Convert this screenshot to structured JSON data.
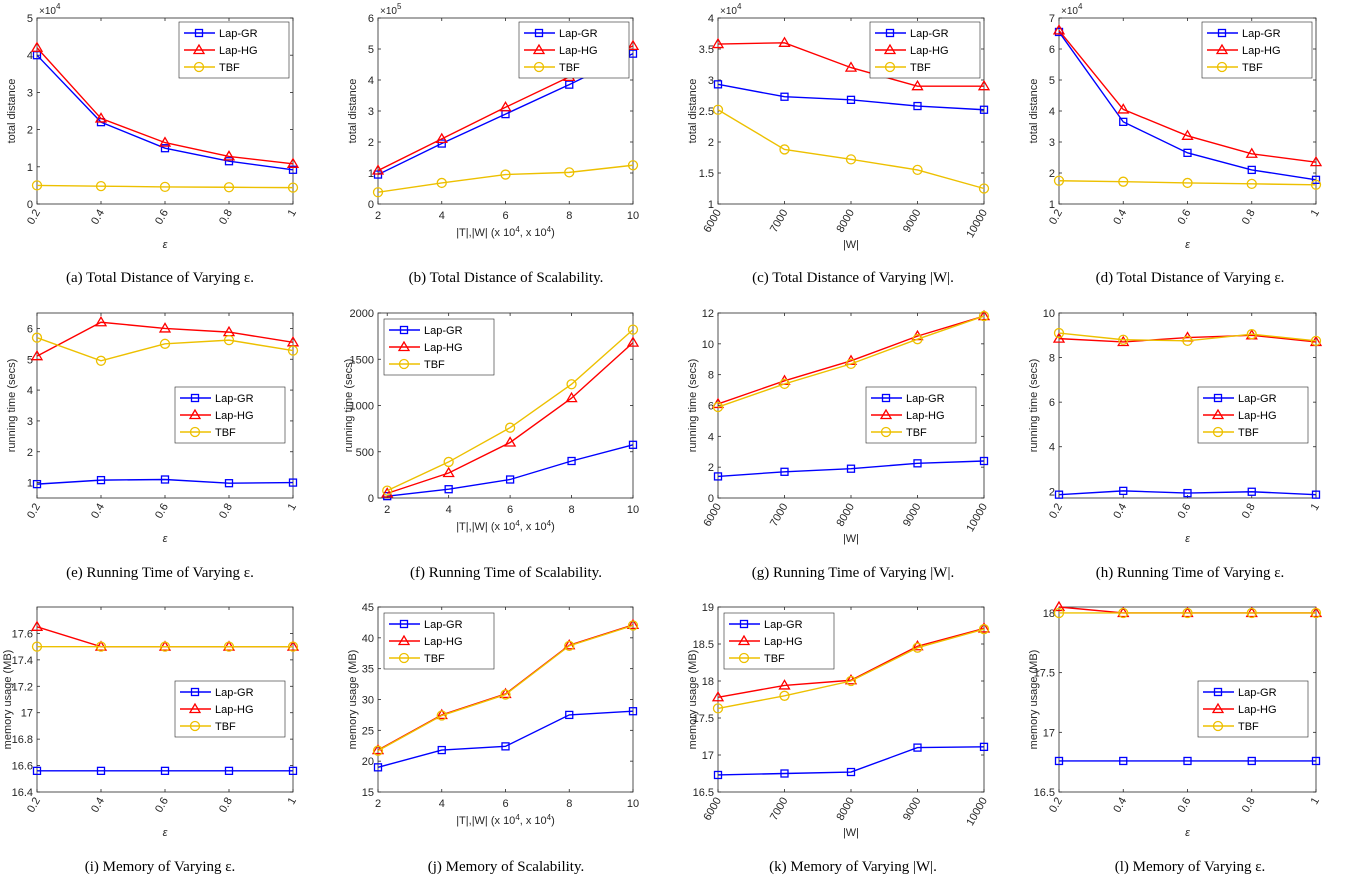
{
  "series_styles": {
    "Lap-GR": {
      "color": "#0000ff",
      "marker": "square"
    },
    "Lap-HG": {
      "color": "#ff0000",
      "marker": "triangle"
    },
    "TBF": {
      "color": "#edc000",
      "marker": "circle"
    }
  },
  "chart_data": [
    {
      "id": "a",
      "type": "line",
      "caption": "(a) Total Distance of Varying ε.",
      "ylabel": "total distance",
      "xlabel": "ε",
      "multiplier": "×10^4",
      "x": [
        0.2,
        0.4,
        0.6,
        0.8,
        1
      ],
      "xticks": [
        0.2,
        0.4,
        0.6,
        0.8,
        1
      ],
      "xtick_labels": [
        "0.2",
        "0.4",
        "0.6",
        "0.8",
        "1"
      ],
      "xlim": [
        0.2,
        1
      ],
      "rotate_x": true,
      "ylim": [
        0,
        5
      ],
      "yticks": [
        0,
        1,
        2,
        3,
        4,
        5
      ],
      "ytick_labels": [
        "0",
        "1",
        "2",
        "3",
        "4",
        "5"
      ],
      "legend": "top-right",
      "series": [
        {
          "name": "Lap-GR",
          "values": [
            4.0,
            2.2,
            1.5,
            1.15,
            0.92
          ]
        },
        {
          "name": "Lap-HG",
          "values": [
            4.2,
            2.3,
            1.65,
            1.28,
            1.08
          ]
        },
        {
          "name": "TBF",
          "values": [
            0.5,
            0.48,
            0.46,
            0.45,
            0.44
          ]
        }
      ]
    },
    {
      "id": "b",
      "type": "line",
      "caption": "(b) Total Distance of Scalability.",
      "ylabel": "total distance",
      "xlabel": "|T|,|W| (x 10^4, x 10^4)",
      "multiplier": "×10^5",
      "x": [
        2,
        4,
        6,
        8,
        10
      ],
      "xticks": [
        2,
        4,
        6,
        8,
        10
      ],
      "xtick_labels": [
        "2",
        "4",
        "6",
        "8",
        "10"
      ],
      "xlim": [
        2,
        10
      ],
      "rotate_x": false,
      "ylim": [
        0,
        6
      ],
      "yticks": [
        0,
        1,
        2,
        3,
        4,
        5,
        6
      ],
      "ytick_labels": [
        "0",
        "1",
        "2",
        "3",
        "4",
        "5",
        "6"
      ],
      "legend": "top-right",
      "series": [
        {
          "name": "Lap-GR",
          "values": [
            0.95,
            1.95,
            2.9,
            3.85,
            4.85
          ]
        },
        {
          "name": "Lap-HG",
          "values": [
            1.08,
            2.1,
            3.12,
            4.1,
            5.1
          ]
        },
        {
          "name": "TBF",
          "values": [
            0.38,
            0.68,
            0.95,
            1.02,
            1.25
          ]
        }
      ]
    },
    {
      "id": "c",
      "type": "line",
      "caption": "(c) Total Distance of Varying |W|.",
      "ylabel": "total distance",
      "xlabel": "|W|",
      "multiplier": "×10^4",
      "x": [
        6000,
        7000,
        8000,
        9000,
        10000
      ],
      "xticks": [
        6000,
        7000,
        8000,
        9000,
        10000
      ],
      "xtick_labels": [
        "6000",
        "7000",
        "8000",
        "9000",
        "10000"
      ],
      "xlim": [
        6000,
        10000
      ],
      "rotate_x": true,
      "ylim": [
        1,
        4
      ],
      "yticks": [
        1,
        1.5,
        2,
        2.5,
        3,
        3.5,
        4
      ],
      "ytick_labels": [
        "1",
        "1.5",
        "2",
        "2.5",
        "3",
        "3.5",
        "4"
      ],
      "legend": "top-right",
      "series": [
        {
          "name": "Lap-GR",
          "values": [
            2.93,
            2.73,
            2.68,
            2.58,
            2.52
          ]
        },
        {
          "name": "Lap-HG",
          "values": [
            3.58,
            3.6,
            3.2,
            2.9,
            2.9
          ]
        },
        {
          "name": "TBF",
          "values": [
            2.52,
            1.88,
            1.72,
            1.55,
            1.25
          ]
        }
      ]
    },
    {
      "id": "d",
      "type": "line",
      "caption": "(d) Total Distance of Varying ε.",
      "ylabel": "total distance",
      "xlabel": "ε",
      "multiplier": "×10^4",
      "x": [
        0.2,
        0.4,
        0.6,
        0.8,
        1
      ],
      "xticks": [
        0.2,
        0.4,
        0.6,
        0.8,
        1
      ],
      "xtick_labels": [
        "0.2",
        "0.4",
        "0.6",
        "0.8",
        "1"
      ],
      "xlim": [
        0.2,
        1
      ],
      "rotate_x": true,
      "ylim": [
        1,
        7
      ],
      "yticks": [
        1,
        2,
        3,
        4,
        5,
        6,
        7
      ],
      "ytick_labels": [
        "1",
        "2",
        "3",
        "4",
        "5",
        "6",
        "7"
      ],
      "legend": "top-right",
      "series": [
        {
          "name": "Lap-GR",
          "values": [
            6.55,
            3.65,
            2.65,
            2.1,
            1.78
          ]
        },
        {
          "name": "Lap-HG",
          "values": [
            6.6,
            4.05,
            3.2,
            2.62,
            2.35
          ]
        },
        {
          "name": "TBF",
          "values": [
            1.75,
            1.72,
            1.68,
            1.65,
            1.62
          ]
        }
      ]
    },
    {
      "id": "e",
      "type": "line",
      "caption": "(e) Running Time of Varying ε.",
      "ylabel": "running time (secs)",
      "xlabel": "ε",
      "multiplier": "",
      "x": [
        0.2,
        0.4,
        0.6,
        0.8,
        1
      ],
      "xticks": [
        0.2,
        0.4,
        0.6,
        0.8,
        1
      ],
      "xtick_labels": [
        "0.2",
        "0.4",
        "0.6",
        "0.8",
        "1"
      ],
      "xlim": [
        0.2,
        1
      ],
      "rotate_x": true,
      "ylim": [
        0.5,
        6.5
      ],
      "yticks": [
        1,
        2,
        3,
        4,
        5,
        6
      ],
      "ytick_labels": [
        "1",
        "2",
        "3",
        "4",
        "5",
        "6"
      ],
      "legend": "middle-right",
      "series": [
        {
          "name": "Lap-GR",
          "values": [
            0.95,
            1.08,
            1.1,
            0.98,
            1.0
          ]
        },
        {
          "name": "Lap-HG",
          "values": [
            5.1,
            6.2,
            6.0,
            5.88,
            5.55
          ]
        },
        {
          "name": "TBF",
          "values": [
            5.7,
            4.95,
            5.5,
            5.62,
            5.28
          ]
        }
      ]
    },
    {
      "id": "f",
      "type": "line",
      "caption": "(f) Running Time of Scalability.",
      "ylabel": "running time (secs)",
      "xlabel": "|T|,|W| (x 10^4, x 10^4)",
      "multiplier": "",
      "x": [
        2,
        4,
        6,
        8,
        10
      ],
      "xticks": [
        2,
        4,
        6,
        8,
        10
      ],
      "xtick_labels": [
        "2",
        "4",
        "6",
        "8",
        "10"
      ],
      "xlim": [
        1.7,
        10
      ],
      "rotate_x": false,
      "ylim": [
        0,
        2000
      ],
      "yticks": [
        0,
        500,
        1000,
        1500,
        2000
      ],
      "ytick_labels": [
        "0",
        "500",
        "1000",
        "1500",
        "2000"
      ],
      "legend": "top-left",
      "series": [
        {
          "name": "Lap-GR",
          "values": [
            20,
            95,
            200,
            400,
            575
          ]
        },
        {
          "name": "Lap-HG",
          "values": [
            50,
            270,
            600,
            1080,
            1680
          ]
        },
        {
          "name": "TBF",
          "values": [
            80,
            390,
            760,
            1230,
            1820
          ]
        }
      ]
    },
    {
      "id": "g",
      "type": "line",
      "caption": "(g) Running Time of Varying |W|.",
      "ylabel": "running time (secs)",
      "xlabel": "|W|",
      "multiplier": "",
      "x": [
        6000,
        7000,
        8000,
        9000,
        10000
      ],
      "xticks": [
        6000,
        7000,
        8000,
        9000,
        10000
      ],
      "xtick_labels": [
        "6000",
        "7000",
        "8000",
        "9000",
        "10000"
      ],
      "xlim": [
        6000,
        10000
      ],
      "rotate_x": true,
      "ylim": [
        0,
        12
      ],
      "yticks": [
        0,
        2,
        4,
        6,
        8,
        10,
        12
      ],
      "ytick_labels": [
        "0",
        "2",
        "4",
        "6",
        "8",
        "10",
        "12"
      ],
      "legend": "middle-right",
      "series": [
        {
          "name": "Lap-GR",
          "values": [
            1.4,
            1.7,
            1.9,
            2.25,
            2.4
          ]
        },
        {
          "name": "Lap-HG",
          "values": [
            6.1,
            7.6,
            8.9,
            10.5,
            11.8
          ]
        },
        {
          "name": "TBF",
          "values": [
            5.9,
            7.4,
            8.7,
            10.3,
            11.8
          ]
        }
      ]
    },
    {
      "id": "h",
      "type": "line",
      "caption": "(h) Running Time of Varying ε.",
      "ylabel": "running time (secs)",
      "xlabel": "ε",
      "multiplier": "",
      "x": [
        0.2,
        0.4,
        0.6,
        0.8,
        1
      ],
      "xticks": [
        0.2,
        0.4,
        0.6,
        0.8,
        1
      ],
      "xtick_labels": [
        "0.2",
        "0.4",
        "0.6",
        "0.8",
        "1"
      ],
      "xlim": [
        0.2,
        1
      ],
      "rotate_x": true,
      "ylim": [
        1.7,
        10
      ],
      "yticks": [
        2,
        4,
        6,
        8,
        10
      ],
      "ytick_labels": [
        "2",
        "4",
        "6",
        "8",
        "10"
      ],
      "legend": "middle-right",
      "series": [
        {
          "name": "Lap-GR",
          "values": [
            1.85,
            2.02,
            1.92,
            1.98,
            1.85
          ]
        },
        {
          "name": "Lap-HG",
          "values": [
            8.85,
            8.7,
            8.9,
            9.0,
            8.7
          ]
        },
        {
          "name": "TBF",
          "values": [
            9.1,
            8.8,
            8.75,
            9.05,
            8.75
          ]
        }
      ]
    },
    {
      "id": "i",
      "type": "line",
      "caption": "(i) Memory of Varying ε.",
      "ylabel": "memory usage (MB)",
      "xlabel": "ε",
      "multiplier": "",
      "x": [
        0.2,
        0.4,
        0.6,
        0.8,
        1
      ],
      "xticks": [
        0.2,
        0.4,
        0.6,
        0.8,
        1
      ],
      "xtick_labels": [
        "0.2",
        "0.4",
        "0.6",
        "0.8",
        "1"
      ],
      "xlim": [
        0.2,
        1
      ],
      "rotate_x": true,
      "ylim": [
        16.4,
        17.8
      ],
      "yticks": [
        16.4,
        16.6,
        16.8,
        17,
        17.2,
        17.4,
        17.6
      ],
      "ytick_labels": [
        "16.4",
        "16.6",
        "16.8",
        "17",
        "17.2",
        "17.4",
        "17.6"
      ],
      "legend": "middle-right",
      "series": [
        {
          "name": "Lap-GR",
          "values": [
            16.56,
            16.56,
            16.56,
            16.56,
            16.56
          ]
        },
        {
          "name": "Lap-HG",
          "values": [
            17.65,
            17.5,
            17.5,
            17.5,
            17.5
          ]
        },
        {
          "name": "TBF",
          "values": [
            17.5,
            17.5,
            17.5,
            17.5,
            17.5
          ]
        }
      ]
    },
    {
      "id": "j",
      "type": "line",
      "caption": "(j) Memory of Scalability.",
      "ylabel": "memory usage (MB)",
      "xlabel": "|T|,|W| (x 10^4, x 10^4)",
      "multiplier": "",
      "x": [
        2,
        4,
        6,
        8,
        10
      ],
      "xticks": [
        2,
        4,
        6,
        8,
        10
      ],
      "xtick_labels": [
        "2",
        "4",
        "6",
        "8",
        "10"
      ],
      "xlim": [
        2,
        10
      ],
      "rotate_x": false,
      "ylim": [
        15,
        45
      ],
      "yticks": [
        15,
        20,
        25,
        30,
        35,
        40,
        45
      ],
      "ytick_labels": [
        "15",
        "20",
        "25",
        "30",
        "35",
        "40",
        "45"
      ],
      "legend": "top-left",
      "series": [
        {
          "name": "Lap-GR",
          "values": [
            19,
            21.8,
            22.4,
            27.5,
            28.1
          ]
        },
        {
          "name": "Lap-HG",
          "values": [
            21.8,
            27.5,
            30.9,
            38.8,
            42.1
          ]
        },
        {
          "name": "TBF",
          "values": [
            21.7,
            27.4,
            30.8,
            38.7,
            42.0
          ]
        }
      ]
    },
    {
      "id": "k",
      "type": "line",
      "caption": "(k) Memory of Varying |W|.",
      "ylabel": "memory usage (MB)",
      "xlabel": "|W|",
      "multiplier": "",
      "x": [
        6000,
        7000,
        8000,
        9000,
        10000
      ],
      "xticks": [
        6000,
        7000,
        8000,
        9000,
        10000
      ],
      "xtick_labels": [
        "6000",
        "7000",
        "8000",
        "9000",
        "10000"
      ],
      "xlim": [
        6000,
        10000
      ],
      "rotate_x": true,
      "ylim": [
        16.5,
        19
      ],
      "yticks": [
        16.5,
        17,
        17.5,
        18,
        18.5,
        19
      ],
      "ytick_labels": [
        "16.5",
        "17",
        "17.5",
        "18",
        "18.5",
        "19"
      ],
      "legend": "top-left",
      "series": [
        {
          "name": "Lap-GR",
          "values": [
            16.73,
            16.75,
            16.77,
            17.1,
            17.11
          ]
        },
        {
          "name": "Lap-HG",
          "values": [
            17.78,
            17.94,
            18.01,
            18.47,
            18.71
          ]
        },
        {
          "name": "TBF",
          "values": [
            17.63,
            17.8,
            18.0,
            18.45,
            18.7
          ]
        }
      ]
    },
    {
      "id": "l",
      "type": "line",
      "caption": "(l) Memory of Varying ε.",
      "ylabel": "memory usage (MB)",
      "xlabel": "ε",
      "multiplier": "",
      "x": [
        0.2,
        0.4,
        0.6,
        0.8,
        1
      ],
      "xticks": [
        0.2,
        0.4,
        0.6,
        0.8,
        1
      ],
      "xtick_labels": [
        "0.2",
        "0.4",
        "0.6",
        "0.8",
        "1"
      ],
      "xlim": [
        0.2,
        1
      ],
      "rotate_x": true,
      "ylim": [
        16.5,
        18.05
      ],
      "yticks": [
        16.5,
        17,
        17.5,
        18
      ],
      "ytick_labels": [
        "16.5",
        "17",
        "17.5",
        "18"
      ],
      "legend": "middle-right",
      "series": [
        {
          "name": "Lap-GR",
          "values": [
            16.76,
            16.76,
            16.76,
            16.76,
            16.76
          ]
        },
        {
          "name": "Lap-HG",
          "values": [
            18.05,
            18.0,
            18.0,
            18.0,
            18.0
          ]
        },
        {
          "name": "TBF",
          "values": [
            18.0,
            18.0,
            18.0,
            18.0,
            18.0
          ]
        }
      ]
    }
  ]
}
